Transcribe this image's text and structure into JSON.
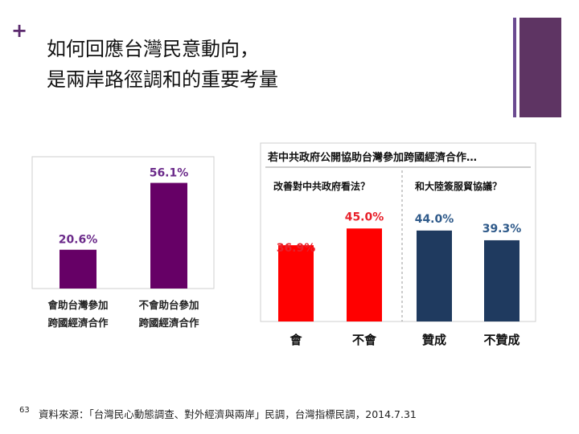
{
  "slide": {
    "title_line1": "如何回應台灣民意動向，",
    "title_line2": "是兩岸路徑調和的重要考量",
    "footer": "資料來源：「台灣民心動態調查、對外經濟與兩岸」民調，台灣指標民調，2014.7.31",
    "page_number": "63"
  },
  "chart_data": [
    {
      "type": "bar",
      "categories": [
        "會助台灣參加\n跨國經濟合作",
        "不會助台參加\n跨國經濟合作"
      ],
      "values": [
        20.6,
        56.1
      ],
      "value_labels": [
        "20.6%",
        "56.1%"
      ],
      "ylim": [
        0,
        70
      ],
      "bar_color": "#660066",
      "label_color": "#6b2a8a",
      "grid": false
    },
    {
      "type": "bar",
      "title": "若中共政府公開協助台灣參加跨國經濟合作…",
      "group_labels": [
        "改善對中共政府看法？",
        "和大陸簽服貿協議？"
      ],
      "categories": [
        "會",
        "不會",
        "贊成",
        "不贊成"
      ],
      "values": [
        36.9,
        45.0,
        44.0,
        39.3
      ],
      "value_labels": [
        "36.9%",
        "45.0%",
        "44.0%",
        "39.3%"
      ],
      "colors": [
        "#ff0000",
        "#ff0000",
        "#1f3a5f",
        "#1f3a5f"
      ],
      "label_colors": [
        "#e8202a",
        "#e8202a",
        "#2f5a8a",
        "#2f5a8a"
      ],
      "ylim": [
        0,
        70
      ],
      "grid": false
    }
  ]
}
